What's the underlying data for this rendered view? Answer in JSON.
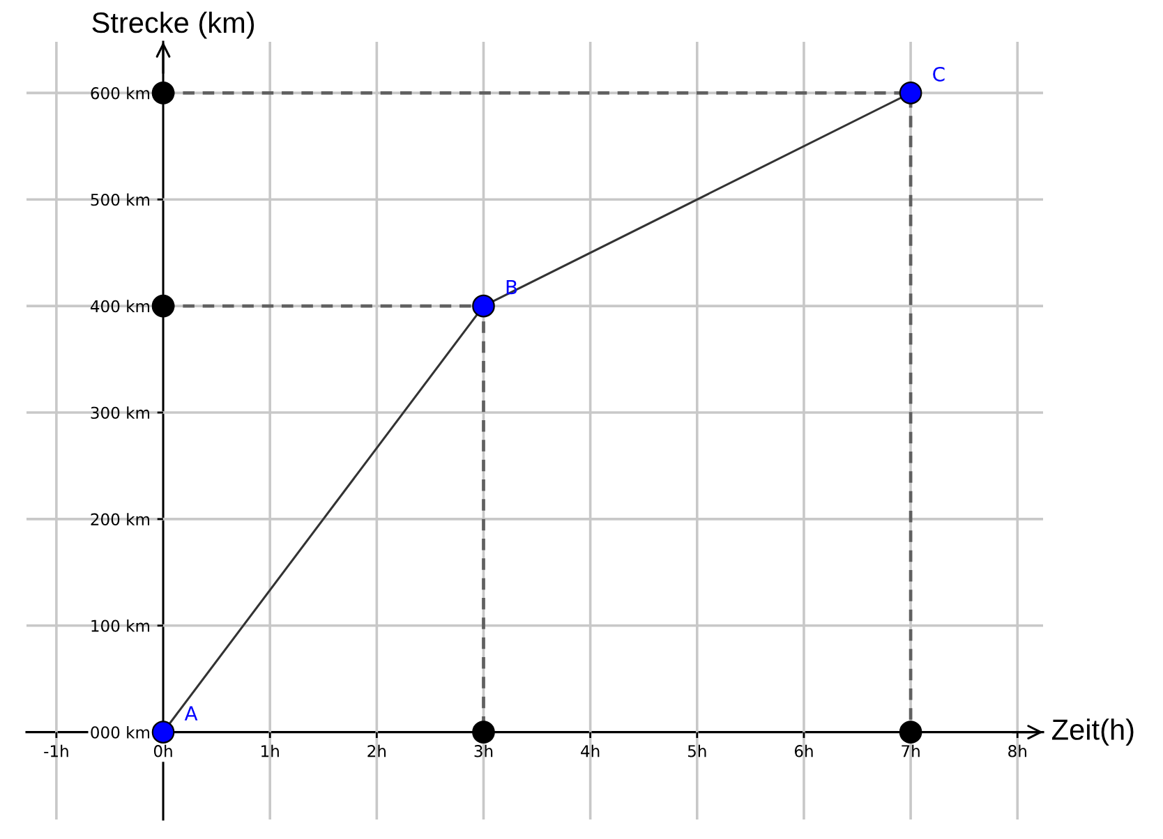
{
  "chart_data": {
    "type": "line",
    "xlabel": "Zeit(h)",
    "ylabel": "Strecke (km)",
    "xlim": [
      -1.28,
      8.24
    ],
    "ylim": [
      -82,
      648
    ],
    "xticks": [
      {
        "value": -1,
        "label": "-1h"
      },
      {
        "value": 0,
        "label": "0h"
      },
      {
        "value": 1,
        "label": "1h"
      },
      {
        "value": 2,
        "label": "2h"
      },
      {
        "value": 3,
        "label": "3h"
      },
      {
        "value": 4,
        "label": "4h"
      },
      {
        "value": 5,
        "label": "5h"
      },
      {
        "value": 6,
        "label": "6h"
      },
      {
        "value": 7,
        "label": "7h"
      },
      {
        "value": 8,
        "label": "8h"
      }
    ],
    "yticks": [
      {
        "value": 0,
        "label": "000 km"
      },
      {
        "value": 100,
        "label": "100 km"
      },
      {
        "value": 200,
        "label": "200 km"
      },
      {
        "value": 300,
        "label": "300 km"
      },
      {
        "value": 400,
        "label": "400 km"
      },
      {
        "value": 500,
        "label": "500 km"
      },
      {
        "value": 600,
        "label": "600 km"
      }
    ],
    "grid": true,
    "series": [
      {
        "type": "line",
        "x": [
          0,
          7,
          7
        ],
        "values": [
          600,
          600,
          0
        ],
        "color": "#606060",
        "line_style": "dashed"
      },
      {
        "type": "line",
        "x": [
          0,
          3,
          3
        ],
        "values": [
          400,
          400,
          0
        ],
        "color": "#606060",
        "line_style": "dashed"
      },
      {
        "x": [
          0,
          3,
          7
        ],
        "values": [
          0,
          400,
          600
        ],
        "color": "#333333",
        "line_style": "solid"
      },
      {
        "type": "scatter",
        "x": [
          0,
          0,
          3,
          7
        ],
        "values": [
          600,
          400,
          0,
          0
        ],
        "color": "#000000",
        "marker": "circle"
      },
      {
        "type": "scatter",
        "x": [
          0,
          3,
          7
        ],
        "values": [
          0,
          400,
          600
        ],
        "color": "#0000ff",
        "marker": "circle"
      }
    ],
    "annotations": [
      {
        "text": "A",
        "x": 0,
        "y": 0
      },
      {
        "text": "B",
        "x": 3,
        "y": 400
      },
      {
        "text": "C",
        "x": 7,
        "y": 600
      }
    ]
  }
}
